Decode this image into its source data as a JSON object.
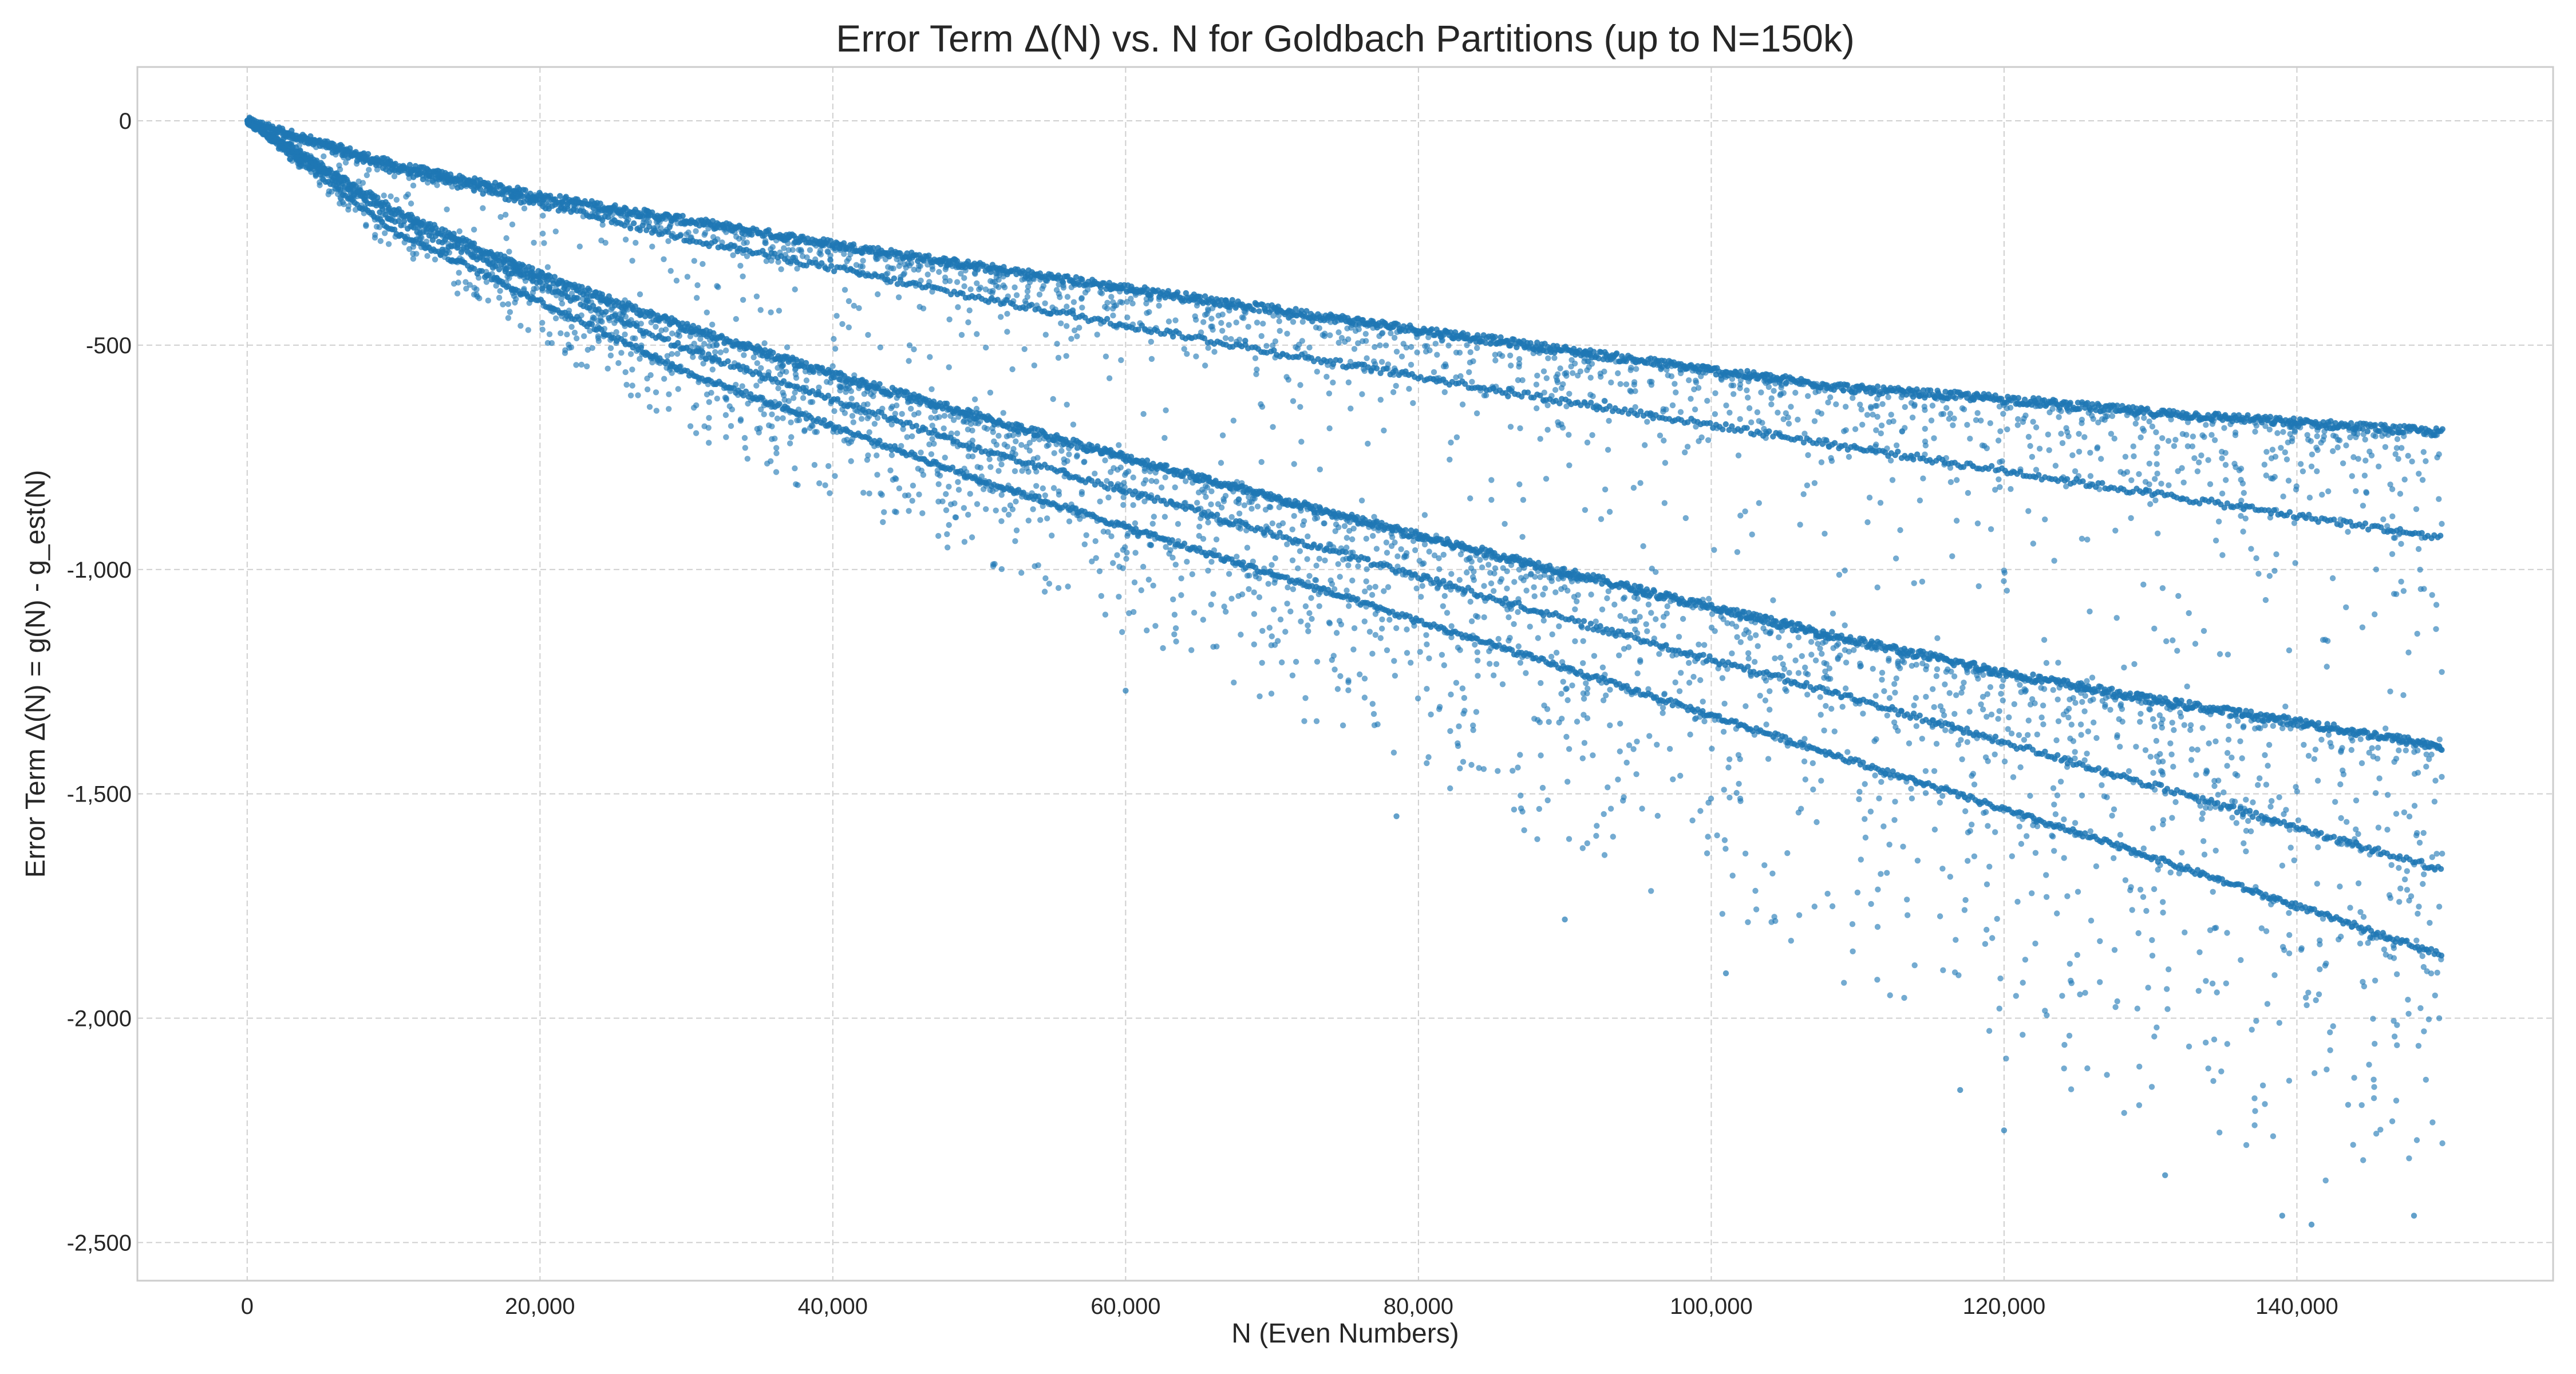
{
  "chart_data": {
    "type": "scatter",
    "title": "Error Term Δ(N) vs. N for Goldbach Partitions (up to N=150k)",
    "xlabel": "N (Even Numbers)",
    "ylabel": "Error Term Δ(N) = g(N) - g_est(N)",
    "xlim": [
      -7500,
      157500
    ],
    "ylim": [
      -2585,
      120
    ],
    "xticks": [
      0,
      20000,
      40000,
      60000,
      80000,
      100000,
      120000,
      140000
    ],
    "xtick_labels": [
      "0",
      "20,000",
      "40,000",
      "60,000",
      "80,000",
      "100,000",
      "120,000",
      "140,000"
    ],
    "yticks": [
      0,
      -500,
      -1000,
      -1500,
      -2000,
      -2500
    ],
    "ytick_labels": [
      "0",
      "-500",
      "-1,000",
      "-1,500",
      "-2,000",
      "-2,500"
    ],
    "grid": true,
    "legend": "none",
    "marker_color": "#1f77b4",
    "series": [
      {
        "description_key": "upper_band",
        "x": [
          0,
          10000,
          20000,
          30000,
          40000,
          50000,
          60000,
          70000,
          80000,
          90000,
          100000,
          110000,
          120000,
          130000,
          140000,
          150000
        ],
        "y": [
          0,
          -98,
          -168,
          -222,
          -275,
          -325,
          -373,
          -420,
          -466,
          -511,
          -556,
          -598,
          -620,
          -650,
          -672,
          -695
        ]
      },
      {
        "description_key": "upper_inner_lines",
        "x": [
          0,
          10000,
          30000,
          50000,
          70000,
          90000,
          110000,
          130000,
          150000
        ],
        "y": [
          0,
          -110,
          -262,
          -395,
          -515,
          -625,
          -730,
          -830,
          -930
        ]
      },
      {
        "description_key": "lower_band_top",
        "x": [
          0,
          10000,
          20000,
          30000,
          40000,
          50000,
          60000,
          70000,
          80000,
          90000,
          100000,
          110000,
          120000,
          130000,
          140000,
          150000
        ],
        "y": [
          0,
          -200,
          -345,
          -460,
          -565,
          -660,
          -750,
          -840,
          -925,
          -1005,
          -1085,
          -1160,
          -1230,
          -1290,
          -1340,
          -1395
        ]
      },
      {
        "description_key": "lower_band_middle",
        "x": [
          0,
          10000,
          30000,
          50000,
          70000,
          90000,
          110000,
          130000,
          150000
        ],
        "y": [
          0,
          -220,
          -510,
          -730,
          -920,
          -1110,
          -1290,
          -1480,
          -1670
        ]
      },
      {
        "description_key": "lower_band_bottom_line",
        "x": [
          0,
          10000,
          30000,
          50000,
          70000,
          90000,
          110000,
          130000,
          150000
        ],
        "y": [
          0,
          -245,
          -560,
          -800,
          -1010,
          -1220,
          -1430,
          -1640,
          -1860
        ]
      },
      {
        "description_key": "scatter_outliers",
        "x": [
          60000,
          78500,
          90000,
          101000,
          117000,
          120000,
          131000,
          139000,
          141000,
          148000
        ],
        "y": [
          -1270,
          -1550,
          -1780,
          -1900,
          -2160,
          -2250,
          -2350,
          -2440,
          -2460,
          -2440
        ]
      }
    ]
  }
}
